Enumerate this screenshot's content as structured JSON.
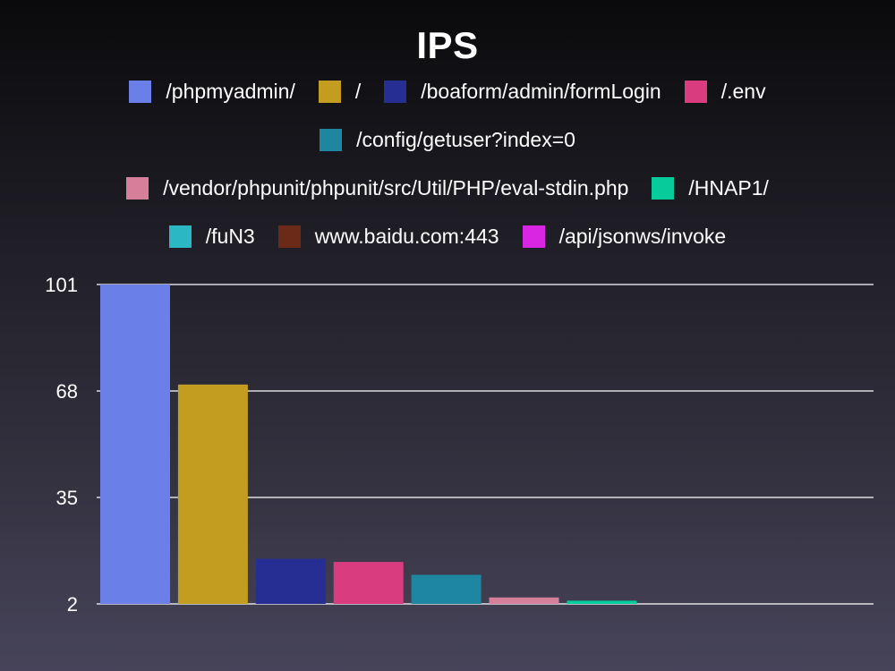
{
  "chart_data": {
    "type": "bar",
    "title": "IPS",
    "categories": [
      "/phpmyadmin/",
      "/",
      "/boaform/admin/formLogin",
      "/.env",
      "/config/getuser?index=0",
      "/vendor/phpunit/phpunit/src/Util/PHP/eval-stdin.php",
      "/HNAP1/",
      "/fuN3",
      "www.baidu.com:443",
      "/api/jsonws/invoke"
    ],
    "values": [
      101,
      70,
      16,
      15,
      11,
      4,
      3,
      2,
      2,
      2
    ],
    "colors": [
      "#6b7fe8",
      "#c29d20",
      "#262e93",
      "#d93d7f",
      "#1e86a0",
      "#d57f9b",
      "#05cc9a",
      "#2bb7c4",
      "#6b2a18",
      "#d926e3"
    ],
    "yticks": [
      "101",
      "68",
      "35",
      "2"
    ],
    "ylim": [
      2,
      101
    ],
    "grid": true,
    "legend_position": "top",
    "xlabel": "",
    "ylabel": ""
  }
}
